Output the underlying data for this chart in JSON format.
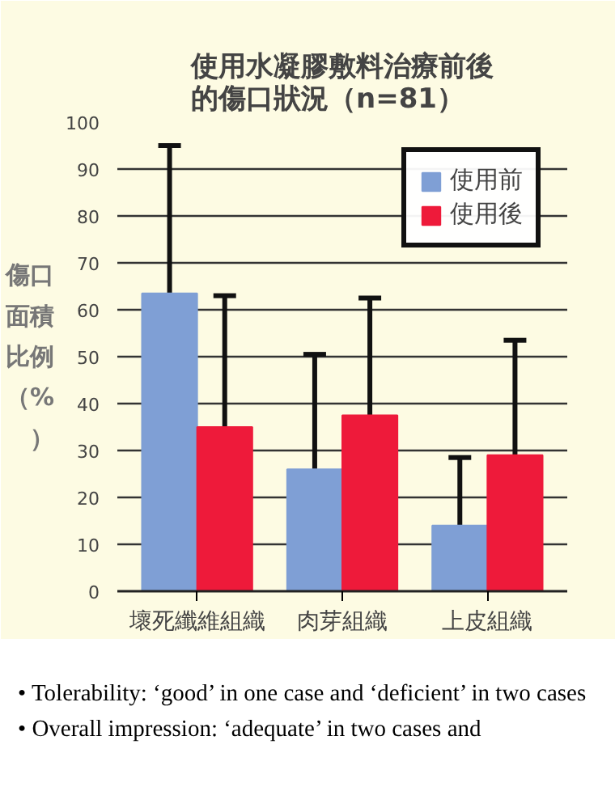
{
  "chart_data": {
    "type": "bar",
    "title": "使用水凝膠敷料治療前後的傷口狀況（n=81）",
    "ylabel": "傷口面積比例（%）",
    "categories": [
      "壞死纖維組織",
      "肉芽組織",
      "上皮組織"
    ],
    "series": [
      {
        "name": "使用前",
        "color": "#7f9fd5",
        "values": [
          63.5,
          26,
          14
        ],
        "errors": [
          [
            63.5,
            95
          ],
          [
            26,
            50.5
          ],
          [
            14,
            28.5
          ]
        ]
      },
      {
        "name": "使用後",
        "color": "#ee1a3a",
        "values": [
          35,
          37.5,
          29
        ],
        "errors": [
          [
            35,
            63
          ],
          [
            37.5,
            62.5
          ],
          [
            29,
            53.5
          ]
        ]
      }
    ],
    "ylim": [
      0,
      100
    ],
    "yticks": [
      0,
      10,
      20,
      30,
      40,
      50,
      60,
      70,
      80,
      90,
      100
    ],
    "grid": "y",
    "legend": "top right",
    "annotations": [
      "• Tolerability: ‘good’ in one case and ‘deficient’ in two cases",
      "• Overall impression: ‘adequate’ in two cases and"
    ]
  }
}
